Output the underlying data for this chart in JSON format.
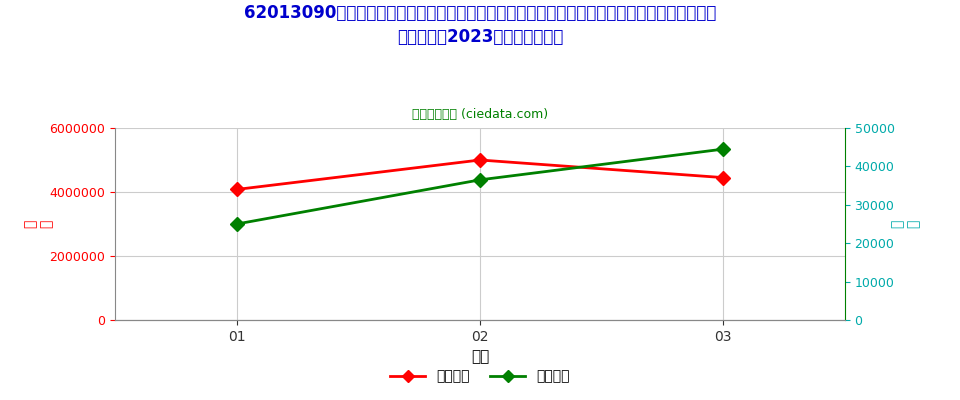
{
  "title_line1": "62013090棉制男式其他大衣、短大衣、斗篷、短斗篷、带风帽的防寒短上衣、防风衣、防风短上",
  "title_line2": "衣及类似品2023年进口月度走势",
  "subtitle": "进出口服务网 (ciedata.com)",
  "xlabel": "月度",
  "ylabel_left": "锁\n额",
  "ylabel_right": "数\n量",
  "months": [
    "01",
    "02",
    "03"
  ],
  "import_usd": [
    4080000,
    5000000,
    4450000
  ],
  "import_qty": [
    25000,
    36500,
    44500
  ],
  "left_ylim": [
    0,
    6000000
  ],
  "right_ylim": [
    0,
    50000
  ],
  "left_yticks": [
    0,
    2000000,
    4000000,
    6000000
  ],
  "right_yticks": [
    0,
    10000,
    20000,
    30000,
    40000,
    50000
  ],
  "line_color_usd": "#FF0000",
  "line_color_qty": "#008000",
  "title_color": "#0000CD",
  "subtitle_color": "#008000",
  "left_tick_color": "#FF0000",
  "right_tick_color": "#00AAAA",
  "xlabel_color": "#000000",
  "background_color": "#FFFFFF",
  "grid_color": "#CCCCCC",
  "legend_usd": "进口美元",
  "legend_qty": "进口数量"
}
